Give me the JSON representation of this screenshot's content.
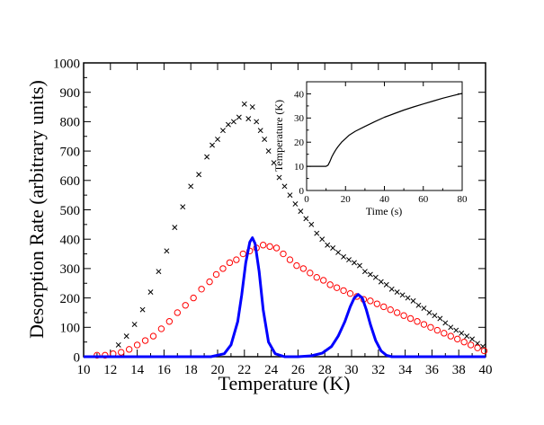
{
  "chart_data": [
    {
      "id": "main",
      "type": "scatter",
      "title": "",
      "xlabel": "Temperature (K)",
      "ylabel": "Desorption Rate (arbitrary units)",
      "xlim": [
        10,
        40
      ],
      "ylim": [
        0,
        1000
      ],
      "xticks": [
        10,
        12,
        14,
        16,
        18,
        20,
        22,
        24,
        26,
        28,
        30,
        32,
        34,
        36,
        38,
        40
      ],
      "xtick_labels": [
        "10",
        "12",
        "14",
        "16",
        "18",
        "20",
        "22",
        "24",
        "26",
        "28",
        "30",
        "32",
        "34",
        "36",
        "38",
        "40"
      ],
      "yticks": [
        0,
        100,
        200,
        300,
        400,
        500,
        600,
        700,
        800,
        900,
        1000
      ],
      "ytick_labels": [
        "0",
        "100",
        "200",
        "300",
        "400",
        "500",
        "600",
        "700",
        "800",
        "900",
        "1000"
      ],
      "grid": false,
      "series": [
        {
          "name": "black-cross-data",
          "style": "cross",
          "color": "#000000",
          "x": [
            12.6,
            13.2,
            13.8,
            14.4,
            15.0,
            15.6,
            16.2,
            16.8,
            17.4,
            18.0,
            18.6,
            19.2,
            19.6,
            20.0,
            20.4,
            20.8,
            21.2,
            21.6,
            22.0,
            22.3,
            22.6,
            22.9,
            23.2,
            23.5,
            23.8,
            24.2,
            24.6,
            25.0,
            25.4,
            25.8,
            26.2,
            26.6,
            27.0,
            27.4,
            27.8,
            28.2,
            28.6,
            29.0,
            29.4,
            29.8,
            30.2,
            30.6,
            31.0,
            31.4,
            31.8,
            32.2,
            32.6,
            33.0,
            33.4,
            33.8,
            34.2,
            34.6,
            35.0,
            35.4,
            35.8,
            36.2,
            36.6,
            37.0,
            37.4,
            37.8,
            38.2,
            38.6,
            39.0,
            39.4,
            39.8
          ],
          "values": [
            40,
            70,
            110,
            160,
            220,
            290,
            360,
            440,
            510,
            580,
            620,
            680,
            720,
            740,
            770,
            790,
            800,
            815,
            860,
            810,
            850,
            800,
            770,
            740,
            700,
            660,
            610,
            580,
            550,
            520,
            495,
            470,
            450,
            420,
            400,
            380,
            370,
            355,
            340,
            330,
            320,
            310,
            290,
            280,
            270,
            255,
            245,
            230,
            220,
            210,
            200,
            190,
            175,
            165,
            150,
            140,
            130,
            115,
            100,
            90,
            80,
            70,
            60,
            45,
            35
          ]
        },
        {
          "name": "red-circle-data",
          "style": "open-circle",
          "color": "#ff0000",
          "x": [
            11.0,
            11.6,
            12.2,
            12.8,
            13.4,
            14.0,
            14.6,
            15.2,
            15.8,
            16.4,
            17.0,
            17.6,
            18.2,
            18.8,
            19.4,
            19.9,
            20.4,
            20.9,
            21.4,
            21.9,
            22.4,
            22.9,
            23.4,
            23.9,
            24.4,
            24.9,
            25.4,
            25.9,
            26.4,
            26.9,
            27.4,
            27.9,
            28.4,
            28.9,
            29.4,
            29.9,
            30.4,
            30.9,
            31.4,
            31.9,
            32.4,
            32.9,
            33.4,
            33.9,
            34.4,
            34.9,
            35.4,
            35.9,
            36.4,
            36.9,
            37.4,
            37.9,
            38.4,
            38.9,
            39.4,
            39.9
          ],
          "values": [
            5,
            5,
            10,
            15,
            25,
            40,
            55,
            70,
            95,
            120,
            150,
            175,
            200,
            230,
            255,
            280,
            300,
            320,
            330,
            350,
            360,
            370,
            380,
            375,
            370,
            350,
            330,
            310,
            300,
            285,
            270,
            260,
            245,
            235,
            225,
            215,
            205,
            195,
            190,
            180,
            170,
            160,
            150,
            140,
            130,
            120,
            110,
            100,
            90,
            80,
            70,
            60,
            50,
            40,
            30,
            20
          ]
        },
        {
          "name": "blue-fit-peak-curve",
          "style": "line",
          "color": "#0000ff",
          "x": [
            10,
            18.0,
            19.5,
            20.5,
            21.0,
            21.5,
            21.8,
            22.1,
            22.4,
            22.6,
            22.8,
            23.1,
            23.4,
            23.8,
            24.3,
            25.0,
            26.0,
            27.0,
            27.8,
            28.5,
            29.0,
            29.5,
            29.9,
            30.2,
            30.5,
            30.8,
            31.1,
            31.4,
            31.8,
            32.2,
            32.6,
            33.0,
            34.0,
            40
          ],
          "values": [
            0,
            0,
            0,
            10,
            40,
            120,
            210,
            320,
            390,
            405,
            385,
            290,
            160,
            50,
            10,
            0,
            0,
            3,
            12,
            35,
            70,
            120,
            170,
            200,
            212,
            200,
            160,
            110,
            55,
            20,
            5,
            0,
            0,
            0
          ]
        }
      ]
    },
    {
      "id": "inset",
      "type": "line",
      "title": "",
      "xlabel": "Time (s)",
      "ylabel": "Temperature (K)",
      "xlim": [
        0,
        80
      ],
      "ylim": [
        0,
        45
      ],
      "xticks": [
        0,
        20,
        40,
        60,
        80
      ],
      "xtick_labels": [
        "0",
        "20",
        "40",
        "60",
        "80"
      ],
      "yticks": [
        0,
        10,
        20,
        30,
        40
      ],
      "ytick_labels": [
        "0",
        "10",
        "20",
        "30",
        "40"
      ],
      "grid": false,
      "series": [
        {
          "name": "temperature-ramp",
          "color": "#000000",
          "x": [
            0,
            4,
            8,
            10,
            11,
            12,
            13,
            14,
            15,
            16,
            18,
            20,
            22,
            25,
            30,
            35,
            40,
            45,
            50,
            55,
            60,
            65,
            70,
            75,
            80
          ],
          "values": [
            10,
            10,
            10,
            10,
            10.5,
            12,
            14,
            15.5,
            16.8,
            18,
            20,
            21.5,
            23,
            24.5,
            26.5,
            28.5,
            30.3,
            31.8,
            33.3,
            34.6,
            35.8,
            37,
            38.2,
            39.2,
            40.2
          ]
        }
      ]
    }
  ]
}
